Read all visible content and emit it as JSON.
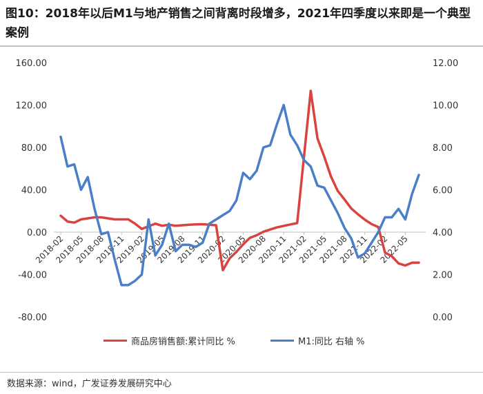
{
  "title": "图10：2018年以后M1与地产销售之间背离时段增多，2021年四季度以来即是一个典型案例",
  "source": "数据来源：wind，广发证券发展研究中心",
  "colors": {
    "red_series": "#d9423e",
    "blue_series": "#4a7fc8",
    "axis": "#bfbfbf",
    "text": "#333333"
  },
  "chart_data": {
    "type": "line",
    "left_axis": {
      "min": -80,
      "max": 160,
      "ticks": [
        "-80.00",
        "-40.00",
        "0.00",
        "40.00",
        "80.00",
        "120.00",
        "160.00"
      ]
    },
    "right_axis": {
      "min": 0,
      "max": 12,
      "ticks": [
        "0.00",
        "2.00",
        "4.00",
        "6.00",
        "8.00",
        "10.00",
        "12.00"
      ]
    },
    "x_tick_labels": [
      "2018-02",
      "2018-05",
      "2018-08",
      "2018-11",
      "2019-02",
      "2019-05",
      "2019-08",
      "2019-11",
      "2020-02",
      "2020-05",
      "2020-08",
      "2020-11",
      "2021-02",
      "2021-05",
      "2021-08",
      "2021-11",
      "2022-02",
      "2022-05"
    ],
    "months": [
      "2018-02",
      "2018-03",
      "2018-04",
      "2018-05",
      "2018-06",
      "2018-07",
      "2018-08",
      "2018-09",
      "2018-10",
      "2018-11",
      "2018-12",
      "2019-01",
      "2019-02",
      "2019-03",
      "2019-04",
      "2019-05",
      "2019-06",
      "2019-07",
      "2019-08",
      "2019-09",
      "2019-10",
      "2019-11",
      "2019-12",
      "2020-01",
      "2020-02",
      "2020-03",
      "2020-04",
      "2020-05",
      "2020-06",
      "2020-07",
      "2020-08",
      "2020-09",
      "2020-10",
      "2020-11",
      "2020-12",
      "2021-01",
      "2021-02",
      "2021-03",
      "2021-04",
      "2021-05",
      "2021-06",
      "2021-07",
      "2021-08",
      "2021-09",
      "2021-10",
      "2021-11",
      "2021-12",
      "2022-01",
      "2022-02",
      "2022-03",
      "2022-04",
      "2022-05",
      "2022-06",
      "2022-07"
    ],
    "series": [
      {
        "name": "商品房销售额:累计同比 %",
        "axis": "left",
        "values": [
          15.5,
          10,
          9,
          12,
          13,
          14,
          14,
          13,
          12,
          12,
          12,
          8,
          3,
          5.5,
          8,
          6,
          7,
          6,
          6.5,
          7,
          7.3,
          7.5,
          7,
          6.5,
          -35.9,
          -24.7,
          -18.6,
          -11.6,
          -5.4,
          -2.9,
          0.4,
          2.5,
          4.5,
          5.9,
          7.3,
          8.5,
          null,
          133.4,
          88.5,
          71.3,
          52.4,
          38.9,
          30.8,
          22.3,
          16.8,
          11.8,
          7.6,
          4.8,
          -19.3,
          -22.7,
          -29.5,
          -31.5,
          -28.9,
          -28.8
        ]
      },
      {
        "name": "M1:同比  右轴 %",
        "axis": "right",
        "values": [
          8.5,
          7.1,
          7.2,
          6.0,
          6.6,
          5.1,
          3.9,
          4.0,
          2.7,
          1.5,
          1.5,
          1.7,
          2.0,
          4.6,
          2.9,
          3.4,
          4.4,
          3.1,
          3.4,
          3.4,
          3.3,
          3.5,
          4.4,
          4.6,
          4.8,
          5.0,
          5.5,
          6.8,
          6.5,
          6.9,
          8.0,
          8.1,
          9.1,
          10.0,
          8.6,
          8.1,
          7.4,
          7.1,
          6.2,
          6.1,
          5.5,
          4.9,
          4.2,
          3.7,
          2.8,
          3.0,
          3.5,
          4.0,
          4.7,
          4.7,
          5.1,
          4.6,
          5.8,
          6.7
        ]
      }
    ],
    "grid": false,
    "legend_position": "bottom"
  }
}
